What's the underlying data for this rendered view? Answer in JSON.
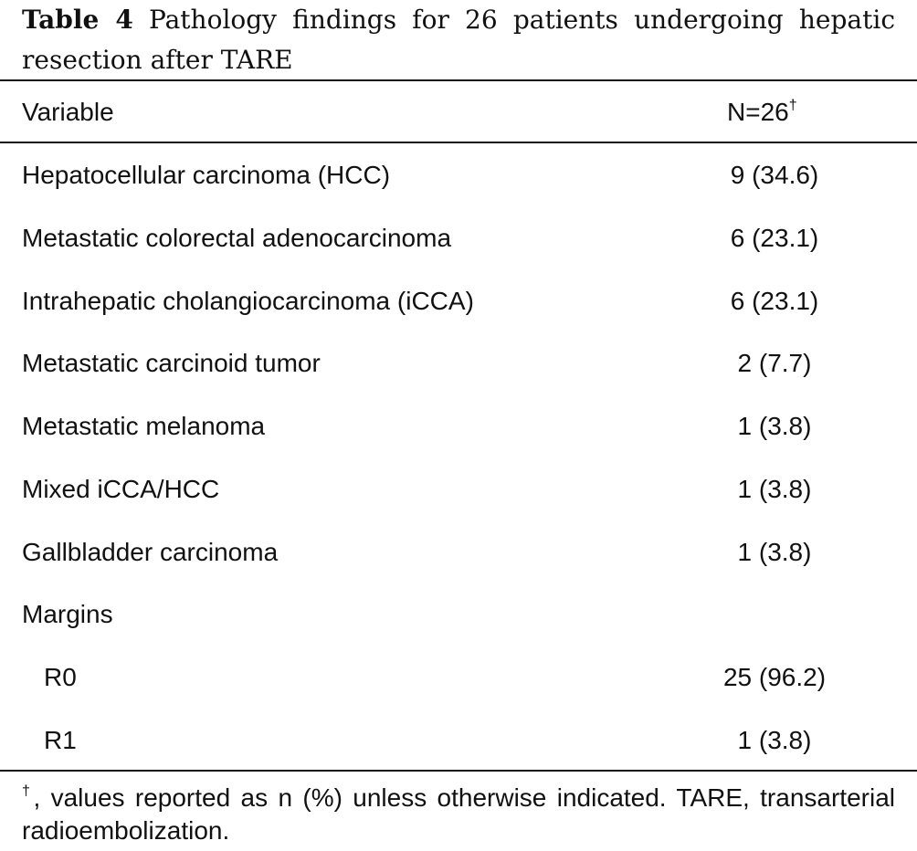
{
  "caption": {
    "label": "Table 4",
    "text": "Pathology findings for 26 patients undergoing hepatic resection after TARE"
  },
  "header": {
    "variable": "Variable",
    "n": "N=26",
    "n_marker": "†"
  },
  "rows": [
    {
      "name": "Hepatocellular carcinoma (HCC)",
      "value": "9 (34.6)"
    },
    {
      "name": "Metastatic colorectal adenocarcinoma",
      "value": "6 (23.1)"
    },
    {
      "name": "Intrahepatic cholangiocarcinoma (iCCA)",
      "value": "6 (23.1)"
    },
    {
      "name": "Metastatic carcinoid tumor",
      "value": "2 (7.7)"
    },
    {
      "name": "Metastatic melanoma",
      "value": "1 (3.8)"
    },
    {
      "name": "Mixed iCCA/HCC",
      "value": "1 (3.8)"
    },
    {
      "name": "Gallbladder carcinoma",
      "value": "1 (3.8)"
    },
    {
      "name": "Margins",
      "value": ""
    },
    {
      "name": "R0",
      "value": "25 (96.2)"
    },
    {
      "name": "R1",
      "value": "1 (3.8)"
    }
  ],
  "footnote": {
    "marker": "†",
    "text": ", values reported as n (%) unless otherwise indicated. TARE, transarterial radioembolization."
  }
}
